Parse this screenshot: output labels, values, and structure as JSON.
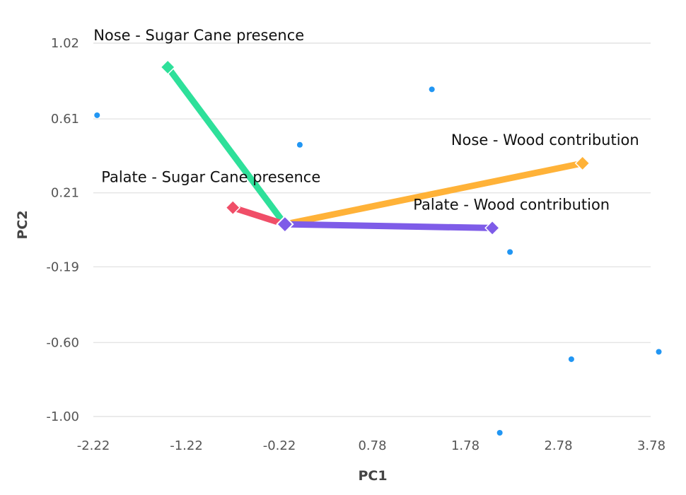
{
  "chart_data": {
    "type": "scatter",
    "xlabel": "PC1",
    "ylabel": "PC2",
    "xlim": [
      -2.22,
      3.78
    ],
    "ylim": [
      -1.0,
      1.02
    ],
    "x_ticks": [
      "-2.22",
      "-1.22",
      "-0.22",
      "0.78",
      "1.78",
      "2.78",
      "3.78"
    ],
    "y_ticks": [
      "1.02",
      "0.61",
      "0.21",
      "-0.19",
      "-0.60",
      "-1.00"
    ],
    "grid": "horizontal",
    "points": [
      {
        "x": -2.18,
        "y": 0.63
      },
      {
        "x": 0.0,
        "y": 0.47
      },
      {
        "x": 1.42,
        "y": 0.77
      },
      {
        "x": 2.26,
        "y": -0.11
      },
      {
        "x": 2.92,
        "y": -0.69
      },
      {
        "x": 3.86,
        "y": -0.65
      },
      {
        "x": 2.15,
        "y": -1.09
      }
    ],
    "origin": {
      "x": -0.16,
      "y": 0.04
    },
    "vectors": [
      {
        "label": "Nose - Sugar Cane presence",
        "x": -1.42,
        "y": 0.89,
        "color": "#2ee09a",
        "label_anchor": "start"
      },
      {
        "label": "Palate - Sugar Cane presence",
        "x": -0.72,
        "y": 0.13,
        "color": "#f04e68",
        "label_anchor": "start"
      },
      {
        "label": "Nose - Wood contribution",
        "x": 3.04,
        "y": 0.37,
        "color": "#ffb238",
        "label_anchor": "end"
      },
      {
        "label": "Palate - Wood contribution",
        "x": 2.07,
        "y": 0.02,
        "color": "#7e5ce8",
        "label_anchor": "end"
      }
    ],
    "point_color": "#2196f3"
  }
}
